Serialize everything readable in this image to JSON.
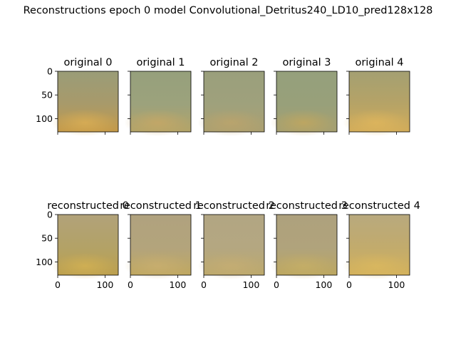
{
  "figure": {
    "title": "Reconstructions epoch 0 model Convolutional_Detritus240_LD10_pred128x128"
  },
  "chart_data": {
    "type": "image-grid",
    "title": "Reconstructions epoch 0 model Convolutional_Detritus240_LD10_pred128x128",
    "rows": 2,
    "cols": 5,
    "axis_range": [
      0,
      128
    ],
    "yticks": [
      "0",
      "50",
      "100"
    ],
    "xticks": [
      "0",
      "100"
    ],
    "panels": [
      {
        "title": "original 0",
        "row": 0,
        "col": 0,
        "colors": {
          "top": "#9a9c78",
          "mid": "#a89a6a",
          "bottom": "#c59a48",
          "accent": "#e0b255"
        }
      },
      {
        "title": "original 1",
        "row": 0,
        "col": 1,
        "colors": {
          "top": "#96a07c",
          "mid": "#9ca27c",
          "bottom": "#b4a468",
          "accent": "#cba864"
        }
      },
      {
        "title": "original 2",
        "row": 0,
        "col": 2,
        "colors": {
          "top": "#9a9f7c",
          "mid": "#9fa17c",
          "bottom": "#aca070",
          "accent": "#c0a56a"
        }
      },
      {
        "title": "original 3",
        "row": 0,
        "col": 3,
        "colors": {
          "top": "#95a07c",
          "mid": "#98a07a",
          "bottom": "#a6a070",
          "accent": "#c8a85a"
        }
      },
      {
        "title": "original 4",
        "row": 0,
        "col": 4,
        "colors": {
          "top": "#a4a072",
          "mid": "#b6a366",
          "bottom": "#d3ad5a",
          "accent": "#e3b85c"
        }
      },
      {
        "title": "reconstructed 0",
        "row": 1,
        "col": 0,
        "colors": {
          "top": "#b1a27a",
          "mid": "#b3a266",
          "bottom": "#bca04e",
          "accent": "#d8b452"
        }
      },
      {
        "title": "reconstructed 1",
        "row": 1,
        "col": 1,
        "colors": {
          "top": "#b0a27e",
          "mid": "#b3a47c",
          "bottom": "#c0a860",
          "accent": "#cbb070"
        }
      },
      {
        "title": "reconstructed 2",
        "row": 1,
        "col": 2,
        "colors": {
          "top": "#b2a683",
          "mid": "#b4a781",
          "bottom": "#bda96c",
          "accent": "#c7ae73"
        }
      },
      {
        "title": "reconstructed 3",
        "row": 1,
        "col": 3,
        "colors": {
          "top": "#aea17d",
          "mid": "#b0a37c",
          "bottom": "#bca760",
          "accent": "#c8b066"
        }
      },
      {
        "title": "reconstructed 4",
        "row": 1,
        "col": 4,
        "colors": {
          "top": "#b8a97e",
          "mid": "#c2ab6c",
          "bottom": "#d4b25c",
          "accent": "#dcb95e"
        }
      }
    ]
  }
}
